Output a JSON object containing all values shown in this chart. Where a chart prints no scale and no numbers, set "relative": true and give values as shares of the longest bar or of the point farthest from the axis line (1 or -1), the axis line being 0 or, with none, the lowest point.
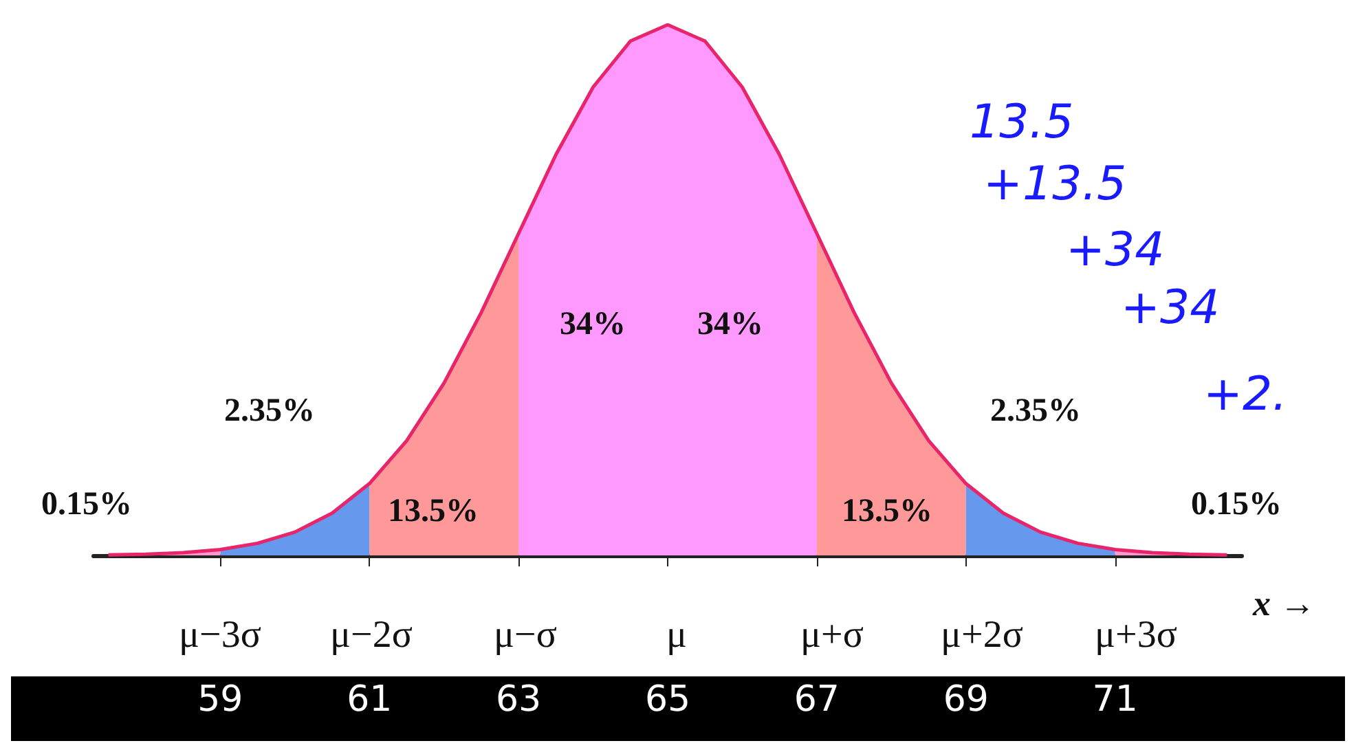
{
  "chart_data": {
    "type": "area",
    "relative": true,
    "grid": false,
    "marker": "none",
    "xlabel": "x →",
    "xlim": [
      57.3,
      72.7
    ],
    "xticks": [
      59,
      61,
      63,
      65,
      67,
      69,
      71
    ],
    "series": [
      {
        "color": "#ff99ff",
        "x": [
          63,
          63.5,
          64,
          64.5,
          65,
          65.5,
          66,
          66.5,
          67
        ],
        "values": [
          0.6065,
          0.7548,
          0.8825,
          0.9692,
          1,
          0.9692,
          0.8825,
          0.7548,
          0.6065
        ]
      },
      {
        "color": "#ff9999",
        "x": [
          61,
          61.5,
          62,
          62.5,
          63
        ],
        "values": [
          0.1353,
          0.2163,
          0.3247,
          0.4578,
          0.6065
        ]
      },
      {
        "color": "#ff9999",
        "x": [
          67,
          67.5,
          68,
          68.5,
          69
        ],
        "values": [
          0.6065,
          0.4578,
          0.3247,
          0.2163,
          0.1353
        ]
      },
      {
        "color": "#6699ee",
        "x": [
          59,
          59.5,
          60,
          60.5,
          61
        ],
        "values": [
          0.0111,
          0.0228,
          0.0439,
          0.0796,
          0.1353
        ]
      },
      {
        "color": "#6699ee",
        "x": [
          69,
          69.5,
          70,
          70.5,
          71
        ],
        "values": [
          0.1353,
          0.0796,
          0.0439,
          0.0228,
          0.0111
        ]
      },
      {
        "color": "#ff99cc",
        "x": [
          57.5,
          58,
          58.5,
          59
        ],
        "values": [
          0.0009,
          0.0022,
          0.0051,
          0.0111
        ]
      },
      {
        "color": "#ff99cc",
        "x": [
          71,
          71.5,
          72,
          72.5
        ],
        "values": [
          0.0111,
          0.0051,
          0.0022,
          0.0009
        ]
      },
      {
        "type": "line",
        "color": "#e8256b",
        "x": [
          57.5,
          58,
          58.5,
          59,
          59.5,
          60,
          60.5,
          61,
          61.5,
          62,
          62.5,
          63,
          63.5,
          64,
          64.5,
          65,
          65.5,
          66,
          66.5,
          67,
          67.5,
          68,
          68.5,
          69,
          69.5,
          70,
          70.5,
          71,
          71.5,
          72,
          72.5
        ],
        "values": [
          0.0009,
          0.0022,
          0.0051,
          0.0111,
          0.0228,
          0.0439,
          0.0796,
          0.1353,
          0.2163,
          0.3247,
          0.4578,
          0.6065,
          0.7548,
          0.8825,
          0.9692,
          1,
          0.9692,
          0.8825,
          0.7548,
          0.6065,
          0.4578,
          0.3247,
          0.2163,
          0.1353,
          0.0796,
          0.0439,
          0.0228,
          0.0111,
          0.0051,
          0.0022,
          0.0009
        ]
      }
    ],
    "annotations": [
      "34%",
      "34%",
      "13.5%",
      "13.5%",
      "2.35%",
      "2.35%",
      "0.15%",
      "0.15%",
      "μ−3σ",
      "μ−2σ",
      "μ−σ",
      "μ",
      "μ+σ",
      "μ+2σ",
      "μ+3σ",
      "13.5",
      "+13.5",
      "+34",
      "+34",
      "+2."
    ]
  }
}
